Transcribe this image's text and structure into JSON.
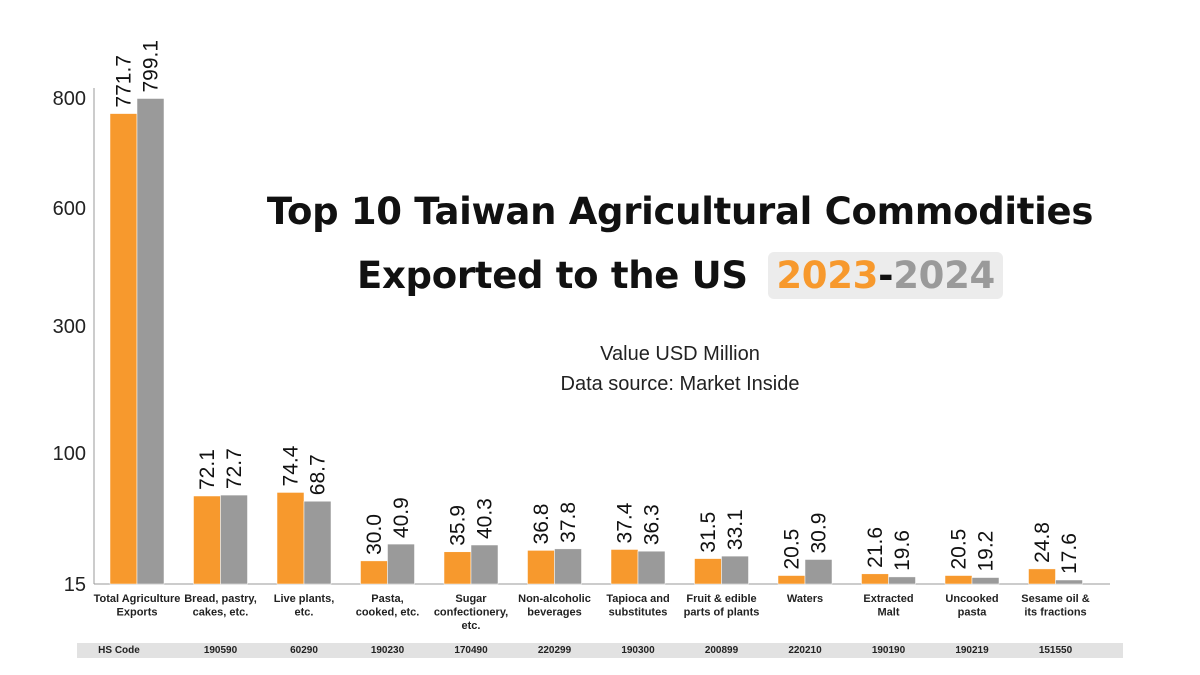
{
  "title": {
    "line1": "Top 10 Taiwan Agricultural Commodities",
    "line2": "Exported to the US",
    "year_a": "2023",
    "separator": "-",
    "year_b": "2024"
  },
  "subtitle": {
    "unit": "Value USD Million",
    "source": "Data source: Market Inside"
  },
  "colors": {
    "series_2023": "#f7992d",
    "series_2024": "#9a9a9a",
    "year_box": "#ececec"
  },
  "hs_code": {
    "label": "HS Code",
    "codes": [
      "190590",
      "60290",
      "190230",
      "170490",
      "220299",
      "190300",
      "200899",
      "220210",
      "190190",
      "190219",
      "151550"
    ]
  },
  "chart_data": {
    "type": "bar",
    "categories": [
      "Total Agriculture Exports",
      "Bread, pastry, cakes, etc.",
      "Live plants, etc.",
      "Pasta, cooked, etc.",
      "Sugar confectionery, etc.",
      "Non-alcoholic beverages",
      "Tapioca and substitutes",
      "Fruit & edible parts of plants",
      "Waters",
      "Extracted Malt",
      "Uncooked pasta",
      "Sesame oil & its fractions"
    ],
    "category_lines": [
      [
        "Total Agriculture",
        "Exports"
      ],
      [
        "Bread, pastry,",
        "cakes, etc."
      ],
      [
        "Live plants,",
        "etc."
      ],
      [
        "Pasta,",
        "cooked, etc."
      ],
      [
        "Sugar",
        "confectionery,",
        "etc."
      ],
      [
        "Non-alcoholic",
        "beverages"
      ],
      [
        "Tapioca and",
        "substitutes"
      ],
      [
        "Fruit & edible",
        "parts of plants"
      ],
      [
        "Waters"
      ],
      [
        "Extracted",
        "Malt"
      ],
      [
        "Uncooked",
        "pasta"
      ],
      [
        "Sesame oil &",
        "its fractions"
      ]
    ],
    "series": [
      {
        "values": [
          771.7,
          72.1,
          74.4,
          30.0,
          35.9,
          36.8,
          37.4,
          31.5,
          20.5,
          21.6,
          20.5,
          24.8
        ]
      },
      {
        "values": [
          799.1,
          72.7,
          68.7,
          40.9,
          40.3,
          37.8,
          36.3,
          33.1,
          30.9,
          19.6,
          19.2,
          17.6
        ]
      }
    ],
    "value_labels": [
      [
        "771.7",
        "72.1",
        "74.4",
        "30.0",
        "35.9",
        "36.8",
        "37.4",
        "31.5",
        "20.5",
        "21.6",
        "20.5",
        "24.8"
      ],
      [
        "799.1",
        "72.7",
        "68.7",
        "40.9",
        "40.3",
        "37.8",
        "36.3",
        "33.1",
        "30.9",
        "19.6",
        "19.2",
        "17.6"
      ]
    ],
    "y_ticks": [
      15,
      100,
      300,
      600,
      800
    ],
    "y_scale": "non-linear (ticks unevenly spaced)",
    "grid": false,
    "legend": "none"
  }
}
